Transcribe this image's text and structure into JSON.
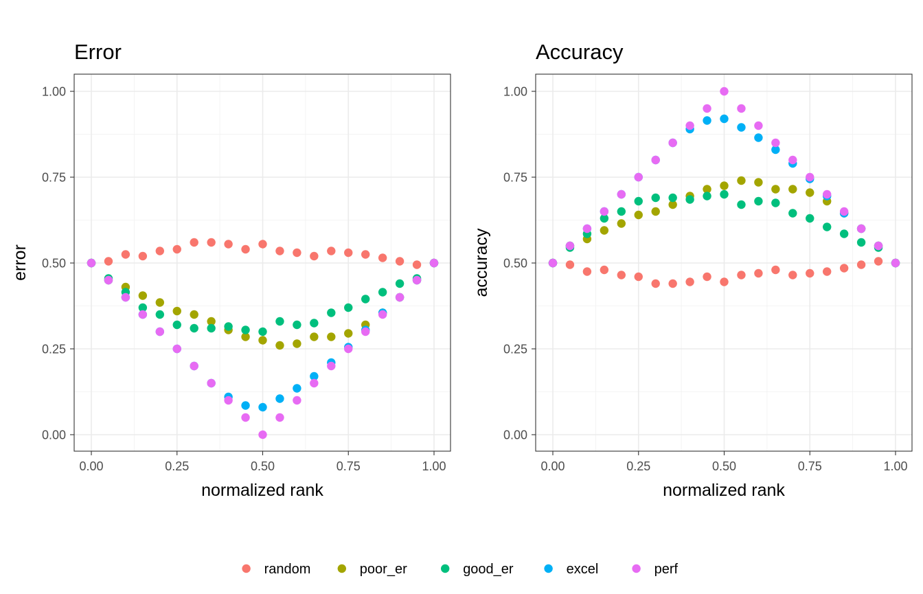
{
  "chart_data": [
    {
      "type": "scatter",
      "title": "Error",
      "xlabel": "normalized rank",
      "ylabel": "error",
      "xlim": [
        0,
        1
      ],
      "ylim": [
        0,
        1
      ],
      "x_ticks": [
        "0.00",
        "0.25",
        "0.50",
        "0.75",
        "1.00"
      ],
      "y_ticks": [
        "0.00",
        "0.25",
        "0.50",
        "0.75",
        "1.00"
      ],
      "grid": true,
      "x": [
        0.0,
        0.05,
        0.1,
        0.15,
        0.2,
        0.25,
        0.3,
        0.35,
        0.4,
        0.45,
        0.5,
        0.55,
        0.6,
        0.65,
        0.7,
        0.75,
        0.8,
        0.85,
        0.9,
        0.95,
        1.0
      ],
      "series": [
        {
          "name": "random",
          "values": [
            0.5,
            0.505,
            0.525,
            0.52,
            0.535,
            0.54,
            0.56,
            0.56,
            0.555,
            0.54,
            0.555,
            0.535,
            0.53,
            0.52,
            0.535,
            0.53,
            0.525,
            0.515,
            0.505,
            0.495,
            0.5
          ]
        },
        {
          "name": "poor_er",
          "values": [
            0.5,
            0.45,
            0.43,
            0.405,
            0.385,
            0.36,
            0.35,
            0.33,
            0.305,
            0.285,
            0.275,
            0.26,
            0.265,
            0.285,
            0.285,
            0.295,
            0.32,
            0.355,
            0.4,
            0.45,
            0.5
          ]
        },
        {
          "name": "good_er",
          "values": [
            0.5,
            0.455,
            0.415,
            0.37,
            0.35,
            0.32,
            0.31,
            0.31,
            0.315,
            0.305,
            0.3,
            0.33,
            0.32,
            0.325,
            0.355,
            0.37,
            0.395,
            0.415,
            0.44,
            0.455,
            0.5
          ]
        },
        {
          "name": "excel",
          "values": [
            0.5,
            0.45,
            0.4,
            0.35,
            0.3,
            0.25,
            0.2,
            0.15,
            0.11,
            0.085,
            0.08,
            0.105,
            0.135,
            0.17,
            0.21,
            0.255,
            0.305,
            0.355,
            0.4,
            0.45,
            0.5
          ]
        },
        {
          "name": "perf",
          "values": [
            0.5,
            0.45,
            0.4,
            0.35,
            0.3,
            0.25,
            0.2,
            0.15,
            0.1,
            0.05,
            0.0,
            0.05,
            0.1,
            0.15,
            0.2,
            0.25,
            0.3,
            0.35,
            0.4,
            0.45,
            0.5
          ]
        }
      ]
    },
    {
      "type": "scatter",
      "title": "Accuracy",
      "xlabel": "normalized rank",
      "ylabel": "accuracy",
      "xlim": [
        0,
        1
      ],
      "ylim": [
        0,
        1
      ],
      "x_ticks": [
        "0.00",
        "0.25",
        "0.50",
        "0.75",
        "1.00"
      ],
      "y_ticks": [
        "0.00",
        "0.25",
        "0.50",
        "0.75",
        "1.00"
      ],
      "grid": true,
      "x": [
        0.0,
        0.05,
        0.1,
        0.15,
        0.2,
        0.25,
        0.3,
        0.35,
        0.4,
        0.45,
        0.5,
        0.55,
        0.6,
        0.65,
        0.7,
        0.75,
        0.8,
        0.85,
        0.9,
        0.95,
        1.0
      ],
      "series": [
        {
          "name": "random",
          "values": [
            0.5,
            0.495,
            0.475,
            0.48,
            0.465,
            0.46,
            0.44,
            0.44,
            0.445,
            0.46,
            0.445,
            0.465,
            0.47,
            0.48,
            0.465,
            0.47,
            0.475,
            0.485,
            0.495,
            0.505,
            0.5
          ]
        },
        {
          "name": "poor_er",
          "values": [
            0.5,
            0.55,
            0.57,
            0.595,
            0.615,
            0.64,
            0.65,
            0.67,
            0.695,
            0.715,
            0.725,
            0.74,
            0.735,
            0.715,
            0.715,
            0.705,
            0.68,
            0.645,
            0.6,
            0.55,
            0.5
          ]
        },
        {
          "name": "good_er",
          "values": [
            0.5,
            0.545,
            0.585,
            0.63,
            0.65,
            0.68,
            0.69,
            0.69,
            0.685,
            0.695,
            0.7,
            0.67,
            0.68,
            0.675,
            0.645,
            0.63,
            0.605,
            0.585,
            0.56,
            0.545,
            0.5
          ]
        },
        {
          "name": "excel",
          "values": [
            0.5,
            0.55,
            0.6,
            0.65,
            0.7,
            0.75,
            0.8,
            0.85,
            0.89,
            0.915,
            0.92,
            0.895,
            0.865,
            0.83,
            0.79,
            0.745,
            0.695,
            0.645,
            0.6,
            0.55,
            0.5
          ]
        },
        {
          "name": "perf",
          "values": [
            0.5,
            0.55,
            0.6,
            0.65,
            0.7,
            0.75,
            0.8,
            0.85,
            0.9,
            0.95,
            1.0,
            0.95,
            0.9,
            0.85,
            0.8,
            0.75,
            0.7,
            0.65,
            0.6,
            0.55,
            0.5
          ]
        }
      ]
    }
  ],
  "legend": {
    "position": "bottom",
    "items": [
      {
        "label": "random",
        "color": "#F8766D"
      },
      {
        "label": "poor_er",
        "color": "#A3A500"
      },
      {
        "label": "good_er",
        "color": "#00BF7D"
      },
      {
        "label": "excel",
        "color": "#00B0F6"
      },
      {
        "label": "perf",
        "color": "#E76BF3"
      }
    ]
  }
}
